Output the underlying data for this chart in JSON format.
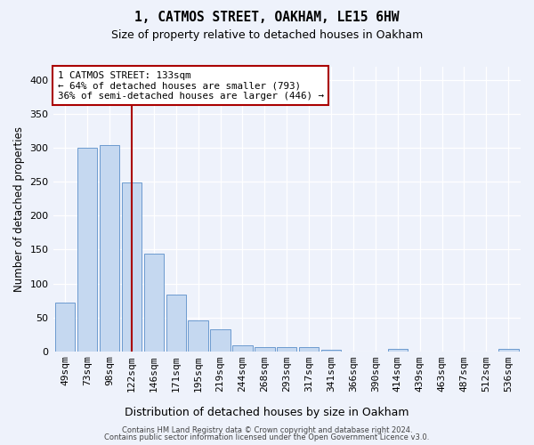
{
  "title": "1, CATMOS STREET, OAKHAM, LE15 6HW",
  "subtitle": "Size of property relative to detached houses in Oakham",
  "xlabel": "Distribution of detached houses by size in Oakham",
  "ylabel": "Number of detached properties",
  "categories": [
    "49sqm",
    "73sqm",
    "98sqm",
    "122sqm",
    "146sqm",
    "171sqm",
    "195sqm",
    "219sqm",
    "244sqm",
    "268sqm",
    "293sqm",
    "317sqm",
    "341sqm",
    "366sqm",
    "390sqm",
    "414sqm",
    "439sqm",
    "463sqm",
    "487sqm",
    "512sqm",
    "536sqm"
  ],
  "values": [
    72,
    300,
    304,
    249,
    144,
    83,
    45,
    32,
    9,
    6,
    6,
    6,
    2,
    0,
    0,
    3,
    0,
    0,
    0,
    0,
    3
  ],
  "bar_color": "#c5d8f0",
  "bar_edge_color": "#5b8fc9",
  "vline_x": 3.0,
  "vline_color": "#aa0000",
  "annotation_text": "1 CATMOS STREET: 133sqm\n← 64% of detached houses are smaller (793)\n36% of semi-detached houses are larger (446) →",
  "annotation_box_color": "#ffffff",
  "annotation_box_edge": "#aa0000",
  "ylim": [
    0,
    420
  ],
  "yticks": [
    0,
    50,
    100,
    150,
    200,
    250,
    300,
    350,
    400
  ],
  "footer_line1": "Contains HM Land Registry data © Crown copyright and database right 2024.",
  "footer_line2": "Contains public sector information licensed under the Open Government Licence v3.0.",
  "background_color": "#eef2fb",
  "grid_color": "#ffffff",
  "title_fontsize": 10.5,
  "subtitle_fontsize": 9,
  "xlabel_fontsize": 9,
  "ylabel_fontsize": 8.5,
  "tick_fontsize": 8,
  "annotation_fontsize": 7.8,
  "footer_fontsize": 6
}
